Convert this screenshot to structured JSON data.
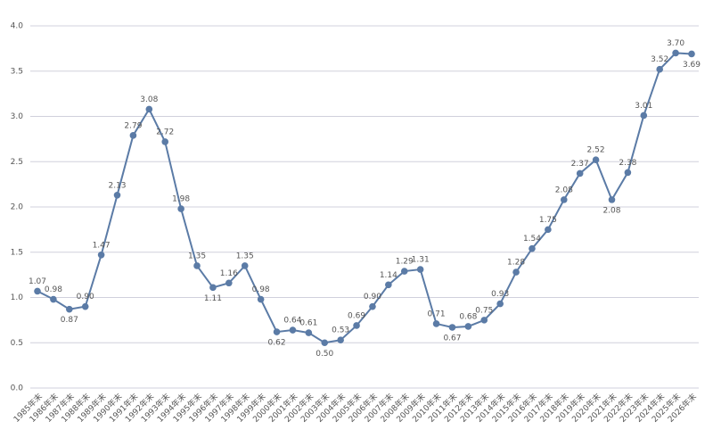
{
  "chart_data": {
    "type": "line",
    "categories": [
      "1985年末",
      "1986年末",
      "1987年末",
      "1988年末",
      "1989年末",
      "1990年末",
      "1991年末",
      "1992年末",
      "1993年末",
      "1994年末",
      "1995年末",
      "1996年末",
      "1997年末",
      "1998年末",
      "1999年末",
      "2000年末",
      "2001年末",
      "2002年末",
      "2003年末",
      "2004年末",
      "2005年末",
      "2006年末",
      "2007年末",
      "2008年末",
      "2009年末",
      "2010年末",
      "2011年末",
      "2012年末",
      "2013年末",
      "2014年末",
      "2015年末",
      "2016年末",
      "2017年末",
      "2018年末",
      "2019年末",
      "2020年末",
      "2021年末",
      "2022年末",
      "2023年末",
      "2024年末",
      "2025年末",
      "2026年末"
    ],
    "values": [
      1.07,
      0.98,
      0.87,
      0.9,
      1.47,
      2.13,
      2.79,
      3.08,
      2.72,
      1.98,
      1.35,
      1.11,
      1.16,
      1.35,
      0.98,
      0.62,
      0.64,
      0.61,
      0.5,
      0.53,
      0.69,
      0.9,
      1.14,
      1.29,
      1.31,
      0.71,
      0.67,
      0.68,
      0.75,
      0.93,
      1.28,
      1.54,
      1.75,
      2.08,
      2.37,
      2.52,
      2.08,
      2.38,
      3.01,
      3.52,
      3.7,
      3.69
    ],
    "value_labels": [
      "1.07",
      "0.98",
      "0.87",
      "0.90",
      "1.47",
      "2.13",
      "2.79",
      "3.08",
      "2.72",
      "1.98",
      "1.35",
      "1.11",
      "1.16",
      "1.35",
      "0.98",
      "0.62",
      "0.64",
      "0.61",
      "0.50",
      "0.53",
      "0.69",
      "0.90",
      "1.14",
      "1.29",
      "1.31",
      "0.71",
      "0.67",
      "0.68",
      "0.75",
      "0.93",
      "1.28",
      "1.54",
      "1.75",
      "2.08",
      "2.37",
      "2.52",
      "2.08",
      "2.38",
      "3.01",
      "3.52",
      "3.70",
      "3.69"
    ],
    "color": "#5b7ba6",
    "ylim": [
      0,
      4
    ],
    "yticks": [
      {
        "value": 0,
        "label": "0.0"
      },
      {
        "value": 0.5,
        "label": "0.5"
      },
      {
        "value": 1,
        "label": "1.0"
      },
      {
        "value": 1.5,
        "label": "1.5"
      },
      {
        "value": 2,
        "label": "2.0"
      },
      {
        "value": 2.5,
        "label": "2.5"
      },
      {
        "value": 3,
        "label": "3.0"
      },
      {
        "value": 3.5,
        "label": "3.5"
      },
      {
        "value": 4,
        "label": "4.0"
      }
    ],
    "grid": true
  }
}
